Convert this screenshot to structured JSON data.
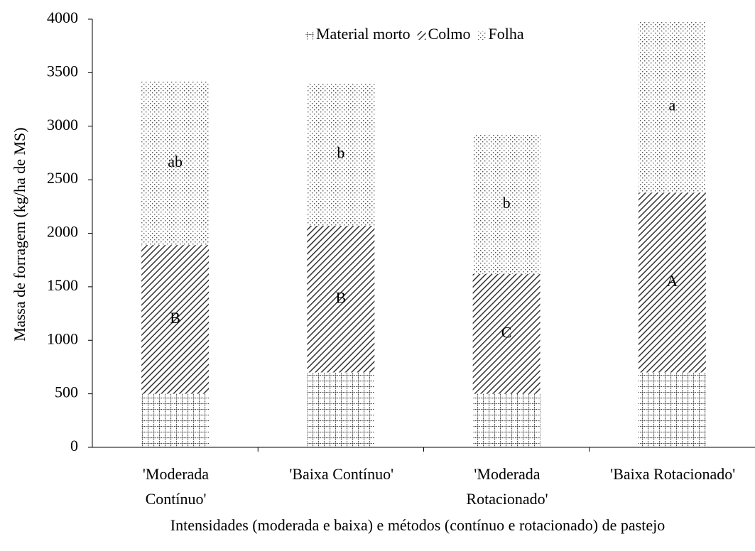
{
  "chart_data": {
    "type": "stacked_bar",
    "y_label": "Massa de forragem (kg/ha de MS)",
    "x_label": "Intensidades (moderada e baixa) e métodos (contínuo e rotacionado) de pastejo",
    "categories": [
      "'Moderada\nContínuo'",
      "'Baixa Contínuo'",
      "'Moderada\nRotacionado'",
      "'Baixa Rotacionado'"
    ],
    "series": [
      {
        "name": "Material morto",
        "values": [
          500,
          700,
          500,
          700
        ]
      },
      {
        "name": "Colmo",
        "values": [
          1390,
          1370,
          1120,
          1680
        ],
        "letters": [
          "B",
          "B",
          "C",
          "A"
        ]
      },
      {
        "name": "Folha",
        "values": [
          1530,
          1330,
          1300,
          1600
        ],
        "letters": [
          "ab",
          "b",
          "b",
          "a"
        ]
      }
    ],
    "ylim": [
      0,
      4000
    ],
    "yticks": [
      0,
      500,
      1000,
      1500,
      2000,
      2500,
      3000,
      3500,
      4000
    ],
    "legend": "top"
  }
}
